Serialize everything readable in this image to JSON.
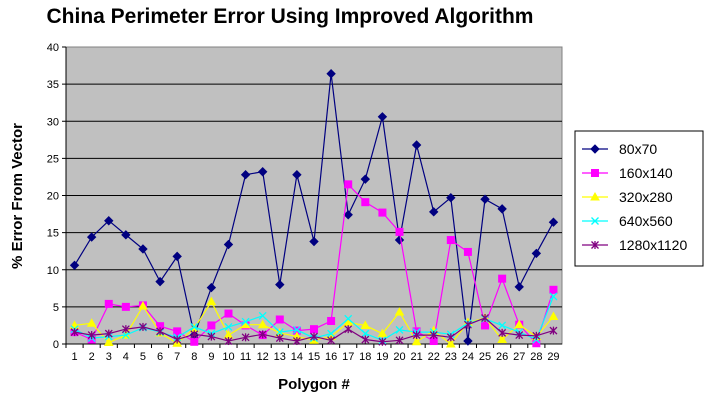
{
  "chart_data": {
    "type": "line",
    "title": "China Perimeter Error Using Improved Algorithm",
    "xlabel": "Polygon #",
    "ylabel": "% Error From Vector",
    "ylim": [
      0,
      40
    ],
    "yticks": [
      0,
      5,
      10,
      15,
      20,
      25,
      30,
      35,
      40
    ],
    "grid": true,
    "legend_position": "right",
    "plot_background": "#c0c0c0",
    "categories": [
      "1",
      "2",
      "3",
      "4",
      "5",
      "6",
      "7",
      "8",
      "9",
      "10",
      "11",
      "12",
      "13",
      "14",
      "15",
      "16",
      "17",
      "18",
      "19",
      "20",
      "21",
      "22",
      "23",
      "24",
      "25",
      "26",
      "27",
      "28",
      "29"
    ],
    "series": [
      {
        "name": "80x70",
        "color": "#000080",
        "marker": "diamond",
        "values": [
          10.6,
          14.4,
          16.6,
          14.7,
          12.8,
          8.4,
          11.8,
          1.2,
          7.6,
          13.4,
          22.8,
          23.2,
          8.0,
          22.8,
          13.8,
          36.4,
          17.4,
          22.2,
          30.6,
          14.0,
          26.8,
          17.8,
          19.7,
          0.4,
          19.5,
          18.2,
          7.7,
          12.2,
          16.4
        ]
      },
      {
        "name": "160x140",
        "color": "#ff00ff",
        "marker": "square",
        "values": [
          1.6,
          0.6,
          5.4,
          5.0,
          5.2,
          2.4,
          1.7,
          0.3,
          2.5,
          4.1,
          2.5,
          1.2,
          3.3,
          1.8,
          2.0,
          3.1,
          21.5,
          19.1,
          17.7,
          15.1,
          1.7,
          0.4,
          14.0,
          12.4,
          2.5,
          8.8,
          2.6,
          0.1,
          7.3
        ]
      },
      {
        "name": "320x280",
        "color": "#ffff00",
        "marker": "triangle",
        "values": [
          2.5,
          2.8,
          0.2,
          1.2,
          5.1,
          1.5,
          0.1,
          2.1,
          5.7,
          1.2,
          2.6,
          2.6,
          1.5,
          1.0,
          0.5,
          1.0,
          2.9,
          2.5,
          1.4,
          4.3,
          0.3,
          1.8,
          0.0,
          2.9,
          3.5,
          0.6,
          2.6,
          1.0,
          3.7
        ]
      },
      {
        "name": "640x560",
        "color": "#00ffff",
        "marker": "x",
        "values": [
          2.0,
          0.8,
          1.0,
          1.2,
          2.2,
          1.6,
          0.9,
          2.3,
          1.4,
          2.3,
          3.0,
          3.8,
          1.6,
          1.9,
          0.8,
          1.4,
          3.4,
          1.4,
          0.5,
          1.9,
          1.6,
          1.6,
          1.3,
          2.8,
          3.4,
          2.5,
          1.6,
          0.6,
          6.4
        ]
      },
      {
        "name": "1280x1120",
        "color": "#800080",
        "marker": "star",
        "values": [
          1.6,
          1.2,
          1.4,
          2.0,
          2.3,
          1.7,
          0.6,
          1.3,
          1.0,
          0.4,
          0.9,
          1.3,
          0.8,
          0.4,
          1.0,
          0.5,
          2.0,
          0.6,
          0.3,
          0.5,
          1.2,
          1.2,
          0.9,
          2.6,
          3.5,
          1.5,
          1.2,
          1.1,
          1.8
        ]
      }
    ]
  }
}
